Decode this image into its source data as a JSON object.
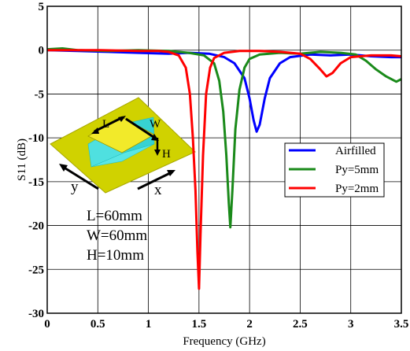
{
  "chart_data": {
    "type": "line",
    "xlabel": "Frequency (GHz)",
    "ylabel": "S11 (dB)",
    "xlim": [
      0,
      3.5
    ],
    "ylim": [
      -30,
      5
    ],
    "xticks": [
      0,
      0.5,
      1,
      1.5,
      2,
      2.5,
      3,
      3.5
    ],
    "xtick_labels": [
      "0",
      "0.5",
      "1",
      "1.5",
      "2",
      "2.5",
      "3",
      "3.5"
    ],
    "yticks": [
      5,
      0,
      -5,
      -10,
      -15,
      -20,
      -25,
      -30
    ],
    "ytick_labels": [
      "5",
      "0",
      "-5",
      "-10",
      "-15",
      "-20",
      "-25",
      "-30"
    ],
    "grid": true,
    "legend_position": "right",
    "series": [
      {
        "name": "Airfilled",
        "color": "#0000ff",
        "points": [
          [
            0,
            0
          ],
          [
            0.3,
            -0.1
          ],
          [
            0.6,
            -0.2
          ],
          [
            0.9,
            -0.3
          ],
          [
            1.2,
            -0.4
          ],
          [
            1.4,
            -0.3
          ],
          [
            1.6,
            -0.4
          ],
          [
            1.75,
            -0.8
          ],
          [
            1.85,
            -1.5
          ],
          [
            1.95,
            -3.2
          ],
          [
            2.0,
            -5.5
          ],
          [
            2.04,
            -8
          ],
          [
            2.07,
            -9.3
          ],
          [
            2.1,
            -8.5
          ],
          [
            2.15,
            -5.5
          ],
          [
            2.2,
            -3.2
          ],
          [
            2.3,
            -1.5
          ],
          [
            2.4,
            -0.8
          ],
          [
            2.6,
            -0.5
          ],
          [
            2.8,
            -0.6
          ],
          [
            3.0,
            -0.5
          ],
          [
            3.2,
            -0.7
          ],
          [
            3.4,
            -0.8
          ],
          [
            3.5,
            -0.8
          ]
        ]
      },
      {
        "name": "Py=5mm",
        "color": "#1a8a1a",
        "points": [
          [
            0,
            0.1
          ],
          [
            0.15,
            0.2
          ],
          [
            0.3,
            0
          ],
          [
            0.6,
            -0.1
          ],
          [
            0.9,
            0
          ],
          [
            1.2,
            -0.1
          ],
          [
            1.4,
            -0.3
          ],
          [
            1.55,
            -0.6
          ],
          [
            1.65,
            -1.5
          ],
          [
            1.7,
            -3.5
          ],
          [
            1.74,
            -7
          ],
          [
            1.77,
            -12
          ],
          [
            1.795,
            -17.5
          ],
          [
            1.81,
            -20.2
          ],
          [
            1.83,
            -16
          ],
          [
            1.86,
            -9
          ],
          [
            1.9,
            -4.5
          ],
          [
            1.95,
            -2
          ],
          [
            2.0,
            -1
          ],
          [
            2.1,
            -0.5
          ],
          [
            2.3,
            -0.3
          ],
          [
            2.5,
            -0.4
          ],
          [
            2.7,
            -0.2
          ],
          [
            2.9,
            -0.3
          ],
          [
            3.05,
            -0.5
          ],
          [
            3.15,
            -1.2
          ],
          [
            3.25,
            -2.2
          ],
          [
            3.35,
            -3
          ],
          [
            3.45,
            -3.6
          ],
          [
            3.5,
            -3.3
          ]
        ]
      },
      {
        "name": "Py=2mm",
        "color": "#ff0000",
        "points": [
          [
            0,
            0
          ],
          [
            0.5,
            0
          ],
          [
            0.9,
            -0.1
          ],
          [
            1.1,
            -0.1
          ],
          [
            1.2,
            -0.2
          ],
          [
            1.3,
            -0.6
          ],
          [
            1.37,
            -2
          ],
          [
            1.41,
            -5
          ],
          [
            1.44,
            -10
          ],
          [
            1.465,
            -16
          ],
          [
            1.485,
            -23
          ],
          [
            1.5,
            -27.2
          ],
          [
            1.515,
            -21
          ],
          [
            1.54,
            -12
          ],
          [
            1.57,
            -5
          ],
          [
            1.61,
            -2
          ],
          [
            1.65,
            -0.9
          ],
          [
            1.75,
            -0.3
          ],
          [
            1.9,
            -0.1
          ],
          [
            2.1,
            -0.1
          ],
          [
            2.3,
            -0.2
          ],
          [
            2.5,
            -0.4
          ],
          [
            2.6,
            -1
          ],
          [
            2.7,
            -2.2
          ],
          [
            2.76,
            -3
          ],
          [
            2.82,
            -2.6
          ],
          [
            2.9,
            -1.5
          ],
          [
            3.0,
            -0.8
          ],
          [
            3.2,
            -0.6
          ],
          [
            3.4,
            -0.6
          ],
          [
            3.5,
            -0.7
          ]
        ]
      }
    ],
    "annotations": {
      "inset_labels": [
        "L",
        "W",
        "H",
        "y",
        "x"
      ],
      "dimensions": [
        "L=60mm",
        "W=60mm",
        "H=10mm"
      ]
    }
  }
}
